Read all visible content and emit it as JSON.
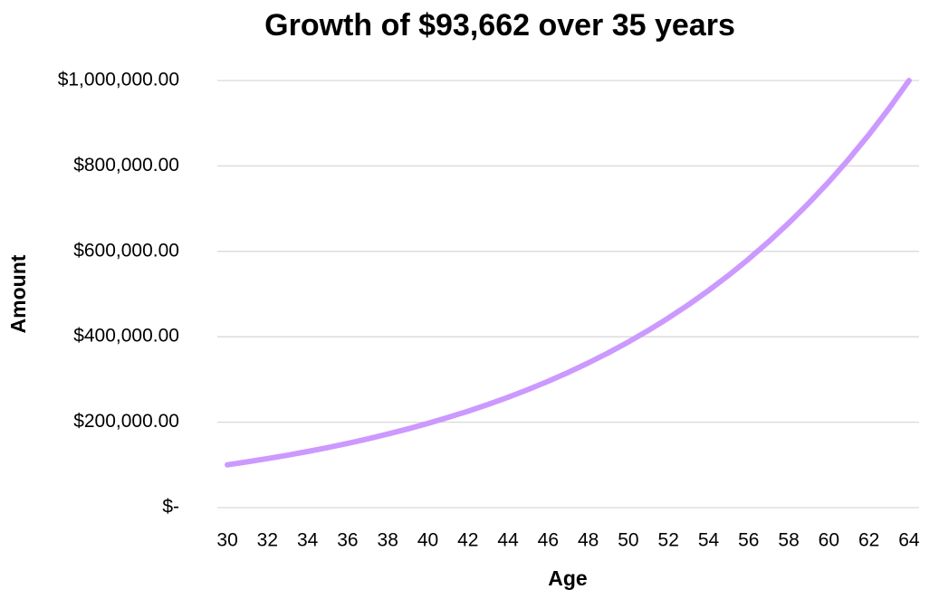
{
  "chart_data": {
    "type": "line",
    "title": "Growth of $93,662 over 35 years",
    "x_label": "Age",
    "y_label": "Amount",
    "categories": [
      30,
      null,
      32,
      null,
      34,
      null,
      36,
      null,
      38,
      null,
      40,
      null,
      42,
      null,
      44,
      null,
      46,
      null,
      48,
      null,
      50,
      null,
      52,
      null,
      54,
      null,
      56,
      null,
      58,
      null,
      60,
      null,
      62,
      null,
      64
    ],
    "series": [
      {
        "name": "Amount",
        "color": "#cc99ff",
        "values": [
          100218,
          107233,
          114740,
          122771,
          131365,
          140561,
          150400,
          160928,
          172193,
          184246,
          197144,
          210944,
          225710,
          241510,
          258415,
          276504,
          295860,
          316570,
          338730,
          362441,
          387812,
          414958,
          444006,
          475086,
          508342,
          543926,
          582000,
          622740,
          666332,
          712975,
          762884,
          816286,
          873426,
          934565,
          999985
        ]
      }
    ],
    "ylim": [
      0,
      1000000
    ],
    "yticks": [
      {
        "value": 0,
        "label": "$-"
      },
      {
        "value": 200000,
        "label": "$200,000.00"
      },
      {
        "value": 400000,
        "label": "$400,000.00"
      },
      {
        "value": 600000,
        "label": "$600,000.00"
      },
      {
        "value": 800000,
        "label": "$800,000.00"
      },
      {
        "value": 1000000,
        "label": "$1,000,000.00"
      }
    ],
    "grid": true
  }
}
